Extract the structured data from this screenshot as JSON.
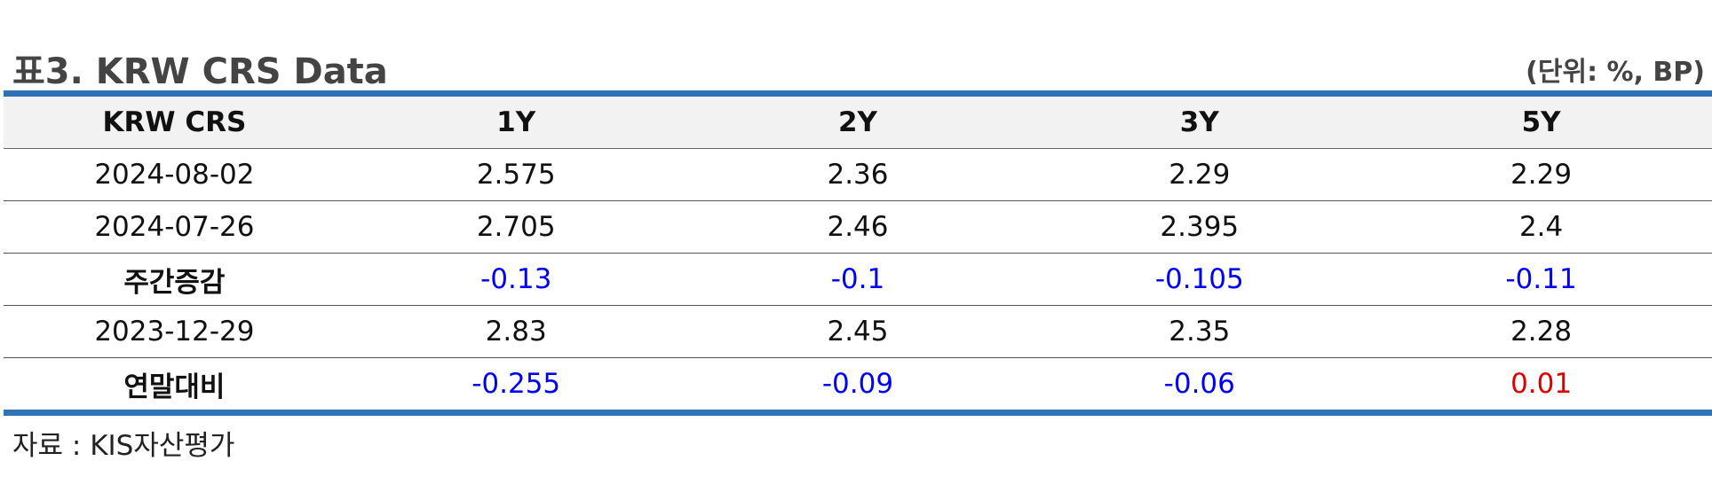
{
  "title": "표3. KRW CRS Data",
  "unit": "(단위: %, BP)",
  "table": {
    "headers": [
      "KRW CRS",
      "1Y",
      "2Y",
      "3Y",
      "5Y"
    ],
    "rows": [
      {
        "label": "2024-08-02",
        "values": [
          "2.575",
          "2.36",
          "2.29",
          "2.29"
        ]
      },
      {
        "label": "2024-07-26",
        "values": [
          "2.705",
          "2.46",
          "2.395",
          "2.4"
        ]
      },
      {
        "label": "주간증감",
        "values": [
          "-0.13",
          "-0.1",
          "-0.105",
          "-0.11"
        ]
      },
      {
        "label": "2023-12-29",
        "values": [
          "2.83",
          "2.45",
          "2.35",
          "2.28"
        ]
      },
      {
        "label": "연말대비",
        "values": [
          "-0.255",
          "-0.09",
          "-0.06",
          "0.01"
        ]
      }
    ]
  },
  "colors": {
    "rule": "#2f73b6",
    "negative": "#0000ff",
    "positive": "#e00000",
    "header_bg": "#f2f2f2"
  },
  "source": "자료 : KIS자산평가"
}
